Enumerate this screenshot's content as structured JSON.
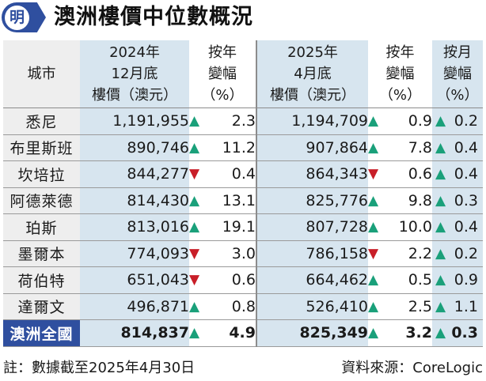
{
  "logo": {
    "glyph": "明"
  },
  "title": "澳洲樓價中位數概況",
  "headers": {
    "city": "城市",
    "price_2024_line1": "2024年",
    "price_2024_line2": "12月底",
    "price_2024_line3": "樓價（澳元）",
    "yoy_2024_line1": "按年",
    "yoy_2024_line2": "變幅",
    "yoy_2024_line3": "（%）",
    "price_2025_line1": "2025年",
    "price_2025_line2": "4月底",
    "price_2025_line3": "樓價（澳元）",
    "yoy_2025_line1": "按年",
    "yoy_2025_line2": "變幅",
    "yoy_2025_line3": "（%）",
    "mom_2025_line1": "按月",
    "mom_2025_line2": "變幅",
    "mom_2025_line3": "（%）"
  },
  "icons": {
    "up": "▲",
    "down": "▼",
    "up_color": "#1aa07a",
    "down_color": "#c81e28"
  },
  "rows": [
    {
      "city": "悉尼",
      "price_2024": "1,191,955",
      "yoy_2024_dir": "up",
      "yoy_2024": "2.3",
      "price_2025": "1,194,709",
      "yoy_2025_dir": "up",
      "yoy_2025": "0.9",
      "mom_2025_dir": "up",
      "mom_2025": "0.2"
    },
    {
      "city": "布里斯班",
      "price_2024": "890,746",
      "yoy_2024_dir": "up",
      "yoy_2024": "11.2",
      "price_2025": "907,864",
      "yoy_2025_dir": "up",
      "yoy_2025": "7.8",
      "mom_2025_dir": "up",
      "mom_2025": "0.4"
    },
    {
      "city": "坎培拉",
      "price_2024": "844,277",
      "yoy_2024_dir": "down",
      "yoy_2024": "0.4",
      "price_2025": "864,343",
      "yoy_2025_dir": "down",
      "yoy_2025": "0.6",
      "mom_2025_dir": "up",
      "mom_2025": "0.4"
    },
    {
      "city": "阿德萊德",
      "price_2024": "814,430",
      "yoy_2024_dir": "up",
      "yoy_2024": "13.1",
      "price_2025": "825,776",
      "yoy_2025_dir": "up",
      "yoy_2025": "9.8",
      "mom_2025_dir": "up",
      "mom_2025": "0.3"
    },
    {
      "city": "珀斯",
      "price_2024": "813,016",
      "yoy_2024_dir": "up",
      "yoy_2024": "19.1",
      "price_2025": "807,728",
      "yoy_2025_dir": "up",
      "yoy_2025": "10.0",
      "mom_2025_dir": "up",
      "mom_2025": "0.4"
    },
    {
      "city": "墨爾本",
      "price_2024": "774,093",
      "yoy_2024_dir": "down",
      "yoy_2024": "3.0",
      "price_2025": "786,158",
      "yoy_2025_dir": "down",
      "yoy_2025": "2.2",
      "mom_2025_dir": "up",
      "mom_2025": "0.2"
    },
    {
      "city": "荷伯特",
      "price_2024": "651,043",
      "yoy_2024_dir": "down",
      "yoy_2024": "0.6",
      "price_2025": "664,462",
      "yoy_2025_dir": "up",
      "yoy_2025": "0.5",
      "mom_2025_dir": "up",
      "mom_2025": "0.9"
    },
    {
      "city": "達爾文",
      "price_2024": "496,871",
      "yoy_2024_dir": "up",
      "yoy_2024": "0.8",
      "price_2025": "526,410",
      "yoy_2025_dir": "up",
      "yoy_2025": "2.5",
      "mom_2025_dir": "up",
      "mom_2025": "1.1"
    }
  ],
  "total": {
    "city": "澳洲全國",
    "price_2024": "814,837",
    "yoy_2024_dir": "up",
    "yoy_2024": "4.9",
    "price_2025": "825,349",
    "yoy_2025_dir": "up",
    "yoy_2025": "3.2",
    "mom_2025_dir": "up",
    "mom_2025": "0.3"
  },
  "footer": {
    "note": "註：數據截至2025年4月30日",
    "source": "資料來源：CoreLogic"
  }
}
